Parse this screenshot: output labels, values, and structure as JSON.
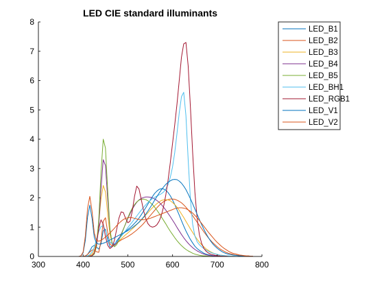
{
  "chart_data": {
    "type": "line",
    "title": "LED CIE standard illuminants",
    "xlabel": "",
    "ylabel": "",
    "xlim": [
      300,
      800
    ],
    "ylim": [
      0,
      8
    ],
    "xticks": [
      300,
      400,
      500,
      600,
      700,
      800
    ],
    "yticks": [
      0,
      1,
      2,
      3,
      4,
      5,
      6,
      7,
      8
    ],
    "grid": false,
    "legend_position": "top-right-outside",
    "x": [
      380,
      385,
      390,
      395,
      400,
      405,
      410,
      415,
      420,
      425,
      430,
      435,
      440,
      445,
      450,
      455,
      460,
      465,
      470,
      475,
      480,
      485,
      490,
      495,
      500,
      505,
      510,
      515,
      520,
      525,
      530,
      535,
      540,
      545,
      550,
      555,
      560,
      565,
      570,
      575,
      580,
      585,
      590,
      595,
      600,
      605,
      610,
      615,
      620,
      625,
      630,
      635,
      640,
      645,
      650,
      655,
      660,
      665,
      670,
      675,
      680,
      685,
      690,
      695,
      700,
      705,
      710,
      715,
      720,
      725,
      730,
      735,
      740,
      745,
      750,
      755,
      760,
      765,
      770,
      775,
      780
    ],
    "series": [
      {
        "name": "LED_B1",
        "color": "#0072BD",
        "values": [
          0.0,
          0.0,
          0.0,
          0.0,
          0.0,
          0.01,
          0.07,
          0.19,
          0.33,
          0.38,
          0.32,
          0.25,
          0.43,
          0.88,
          0.93,
          0.57,
          0.33,
          0.33,
          0.41,
          0.53,
          0.63,
          0.71,
          0.78,
          0.85,
          0.92,
          0.98,
          1.05,
          1.13,
          1.21,
          1.31,
          1.42,
          1.54,
          1.66,
          1.79,
          1.92,
          2.04,
          2.15,
          2.23,
          2.29,
          2.31,
          2.3,
          2.26,
          2.18,
          2.07,
          1.93,
          1.77,
          1.59,
          1.41,
          1.22,
          1.04,
          0.87,
          0.72,
          0.58,
          0.46,
          0.35,
          0.27,
          0.21,
          0.16,
          0.11,
          0.08,
          0.06,
          0.04,
          0.03,
          0.02,
          0.01,
          0.01,
          0.01,
          0.0,
          0.0,
          0.0,
          0.0,
          0.0,
          0.0,
          0.0,
          0.0,
          0.0,
          0.0,
          0.0,
          0.0,
          0.0,
          0.0
        ]
      },
      {
        "name": "LED_B2",
        "color": "#D95319",
        "values": [
          0.0,
          0.0,
          0.0,
          0.0,
          0.0,
          0.02,
          0.07,
          0.15,
          0.22,
          0.22,
          0.16,
          0.14,
          0.52,
          1.2,
          1.32,
          0.82,
          0.43,
          0.35,
          0.38,
          0.45,
          0.51,
          0.56,
          0.6,
          0.64,
          0.68,
          0.73,
          0.78,
          0.84,
          0.9,
          0.97,
          1.04,
          1.12,
          1.21,
          1.3,
          1.39,
          1.48,
          1.57,
          1.66,
          1.74,
          1.81,
          1.87,
          1.91,
          1.94,
          1.96,
          1.96,
          1.95,
          1.92,
          1.88,
          1.83,
          1.76,
          1.68,
          1.59,
          1.5,
          1.39,
          1.28,
          1.17,
          1.06,
          0.95,
          0.84,
          0.74,
          0.64,
          0.55,
          0.47,
          0.4,
          0.33,
          0.27,
          0.22,
          0.18,
          0.14,
          0.11,
          0.09,
          0.07,
          0.05,
          0.04,
          0.03,
          0.02,
          0.02,
          0.01,
          0.01,
          0.01,
          0.01
        ]
      },
      {
        "name": "LED_B3",
        "color": "#EDB120",
        "values": [
          0.0,
          0.0,
          0.0,
          0.0,
          0.0,
          0.0,
          0.01,
          0.03,
          0.08,
          0.2,
          0.52,
          1.15,
          1.95,
          2.42,
          2.2,
          1.46,
          0.76,
          0.45,
          0.39,
          0.44,
          0.52,
          0.6,
          0.67,
          0.74,
          0.8,
          0.87,
          0.94,
          1.01,
          1.09,
          1.16,
          1.24,
          1.32,
          1.41,
          1.49,
          1.58,
          1.66,
          1.73,
          1.8,
          1.86,
          1.91,
          1.93,
          1.94,
          1.93,
          1.9,
          1.84,
          1.77,
          1.68,
          1.57,
          1.45,
          1.33,
          1.2,
          1.07,
          0.94,
          0.82,
          0.7,
          0.59,
          0.49,
          0.4,
          0.33,
          0.26,
          0.21,
          0.16,
          0.12,
          0.09,
          0.07,
          0.05,
          0.04,
          0.03,
          0.02,
          0.01,
          0.01,
          0.01,
          0.0,
          0.0,
          0.0,
          0.0,
          0.0,
          0.0,
          0.0,
          0.0,
          0.0
        ]
      },
      {
        "name": "LED_B4",
        "color": "#7E2F8E",
        "values": [
          0.0,
          0.0,
          0.0,
          0.0,
          0.0,
          0.0,
          0.0,
          0.01,
          0.03,
          0.1,
          0.35,
          1.05,
          2.3,
          3.3,
          3.1,
          1.95,
          0.9,
          0.45,
          0.38,
          0.46,
          0.6,
          0.76,
          0.93,
          1.11,
          1.29,
          1.46,
          1.61,
          1.74,
          1.85,
          1.93,
          1.98,
          2.01,
          2.03,
          2.03,
          2.02,
          2.0,
          1.96,
          1.91,
          1.85,
          1.77,
          1.68,
          1.58,
          1.47,
          1.36,
          1.24,
          1.12,
          0.99,
          0.87,
          0.75,
          0.64,
          0.54,
          0.45,
          0.37,
          0.3,
          0.24,
          0.19,
          0.15,
          0.11,
          0.08,
          0.06,
          0.04,
          0.03,
          0.02,
          0.02,
          0.01,
          0.01,
          0.01,
          0.0,
          0.0,
          0.0,
          0.0,
          0.0,
          0.0,
          0.0,
          0.0,
          0.0,
          0.0,
          0.0,
          0.0,
          0.0,
          0.0
        ]
      },
      {
        "name": "LED_B5",
        "color": "#77AC30",
        "values": [
          0.0,
          0.0,
          0.0,
          0.0,
          0.0,
          0.0,
          0.0,
          0.01,
          0.02,
          0.08,
          0.35,
          1.25,
          2.85,
          4.0,
          3.7,
          2.25,
          0.95,
          0.42,
          0.33,
          0.4,
          0.55,
          0.73,
          0.92,
          1.12,
          1.32,
          1.5,
          1.65,
          1.77,
          1.86,
          1.92,
          1.95,
          1.96,
          1.94,
          1.9,
          1.84,
          1.77,
          1.68,
          1.58,
          1.47,
          1.35,
          1.23,
          1.11,
          0.98,
          0.86,
          0.75,
          0.64,
          0.54,
          0.45,
          0.37,
          0.3,
          0.24,
          0.19,
          0.15,
          0.11,
          0.08,
          0.06,
          0.04,
          0.03,
          0.02,
          0.02,
          0.01,
          0.01,
          0.0,
          0.0,
          0.0,
          0.0,
          0.0,
          0.0,
          0.0,
          0.0,
          0.0,
          0.0,
          0.0,
          0.0,
          0.0,
          0.0,
          0.0,
          0.0,
          0.0,
          0.0,
          0.0
        ]
      },
      {
        "name": "LED_BH1",
        "color": "#4DBEEE",
        "values": [
          0.0,
          0.0,
          0.0,
          0.0,
          0.0,
          0.0,
          0.02,
          0.06,
          0.15,
          0.32,
          0.58,
          0.85,
          1.02,
          1.04,
          0.88,
          0.66,
          0.5,
          0.43,
          0.44,
          0.5,
          0.58,
          0.68,
          0.78,
          0.88,
          0.98,
          1.08,
          1.18,
          1.28,
          1.38,
          1.48,
          1.58,
          1.67,
          1.76,
          1.84,
          1.91,
          1.97,
          2.02,
          2.06,
          2.1,
          2.14,
          2.2,
          2.3,
          2.45,
          2.7,
          3.05,
          3.55,
          4.2,
          4.9,
          5.45,
          5.6,
          4.8,
          3.3,
          1.95,
          1.1,
          0.7,
          0.5,
          0.4,
          0.33,
          0.27,
          0.22,
          0.18,
          0.14,
          0.11,
          0.09,
          0.07,
          0.05,
          0.04,
          0.03,
          0.02,
          0.02,
          0.01,
          0.01,
          0.01,
          0.0,
          0.0,
          0.0,
          0.0,
          0.0,
          0.0,
          0.0,
          0.0
        ]
      },
      {
        "name": "LED_RGB1",
        "color": "#A2142F",
        "values": [
          0.0,
          0.0,
          0.0,
          0.0,
          0.0,
          0.0,
          0.0,
          0.01,
          0.03,
          0.12,
          0.42,
          0.95,
          1.25,
          1.1,
          0.68,
          0.38,
          0.27,
          0.33,
          0.55,
          0.92,
          1.3,
          1.52,
          1.5,
          1.3,
          1.15,
          1.2,
          1.55,
          2.05,
          2.4,
          2.3,
          1.95,
          1.58,
          1.3,
          1.12,
          1.03,
          1.0,
          1.02,
          1.08,
          1.2,
          1.4,
          1.7,
          2.1,
          2.6,
          3.2,
          3.85,
          4.5,
          5.2,
          6.0,
          6.8,
          7.25,
          7.3,
          6.5,
          5.1,
          3.55,
          2.2,
          1.3,
          0.75,
          0.45,
          0.28,
          0.18,
          0.12,
          0.08,
          0.06,
          0.04,
          0.03,
          0.02,
          0.01,
          0.01,
          0.01,
          0.0,
          0.0,
          0.0,
          0.0,
          0.0,
          0.0,
          0.0,
          0.0,
          0.0,
          0.0,
          0.0,
          0.0
        ]
      },
      {
        "name": "LED_V1",
        "color": "#0072BD",
        "values": [
          0.0,
          0.0,
          0.0,
          0.02,
          0.12,
          0.55,
          1.35,
          1.75,
          1.3,
          0.65,
          0.45,
          0.42,
          0.43,
          0.45,
          0.48,
          0.52,
          0.56,
          0.6,
          0.64,
          0.68,
          0.72,
          0.76,
          0.8,
          0.84,
          0.88,
          0.93,
          0.98,
          1.04,
          1.1,
          1.17,
          1.25,
          1.34,
          1.44,
          1.55,
          1.67,
          1.79,
          1.92,
          2.04,
          2.16,
          2.27,
          2.37,
          2.46,
          2.53,
          2.58,
          2.62,
          2.63,
          2.62,
          2.57,
          2.5,
          2.4,
          2.28,
          2.13,
          1.97,
          1.8,
          1.62,
          1.44,
          1.26,
          1.09,
          0.93,
          0.78,
          0.65,
          0.53,
          0.43,
          0.35,
          0.28,
          0.22,
          0.17,
          0.13,
          0.1,
          0.08,
          0.06,
          0.05,
          0.04,
          0.03,
          0.02,
          0.02,
          0.01,
          0.01,
          0.01,
          0.01,
          0.0
        ]
      },
      {
        "name": "LED_V2",
        "color": "#D95319",
        "values": [
          0.0,
          0.0,
          0.0,
          0.02,
          0.15,
          0.7,
          1.65,
          2.05,
          1.55,
          0.8,
          0.55,
          0.52,
          0.55,
          0.6,
          0.66,
          0.73,
          0.8,
          0.88,
          0.96,
          1.05,
          1.13,
          1.2,
          1.26,
          1.3,
          1.32,
          1.33,
          1.32,
          1.3,
          1.28,
          1.26,
          1.25,
          1.25,
          1.26,
          1.28,
          1.3,
          1.33,
          1.36,
          1.39,
          1.42,
          1.45,
          1.48,
          1.51,
          1.54,
          1.57,
          1.6,
          1.63,
          1.65,
          1.66,
          1.66,
          1.65,
          1.63,
          1.59,
          1.54,
          1.48,
          1.4,
          1.32,
          1.23,
          1.13,
          1.03,
          0.93,
          0.83,
          0.74,
          0.65,
          0.56,
          0.48,
          0.41,
          0.34,
          0.28,
          0.23,
          0.18,
          0.14,
          0.11,
          0.09,
          0.07,
          0.05,
          0.04,
          0.03,
          0.02,
          0.02,
          0.01,
          0.01
        ]
      }
    ]
  }
}
